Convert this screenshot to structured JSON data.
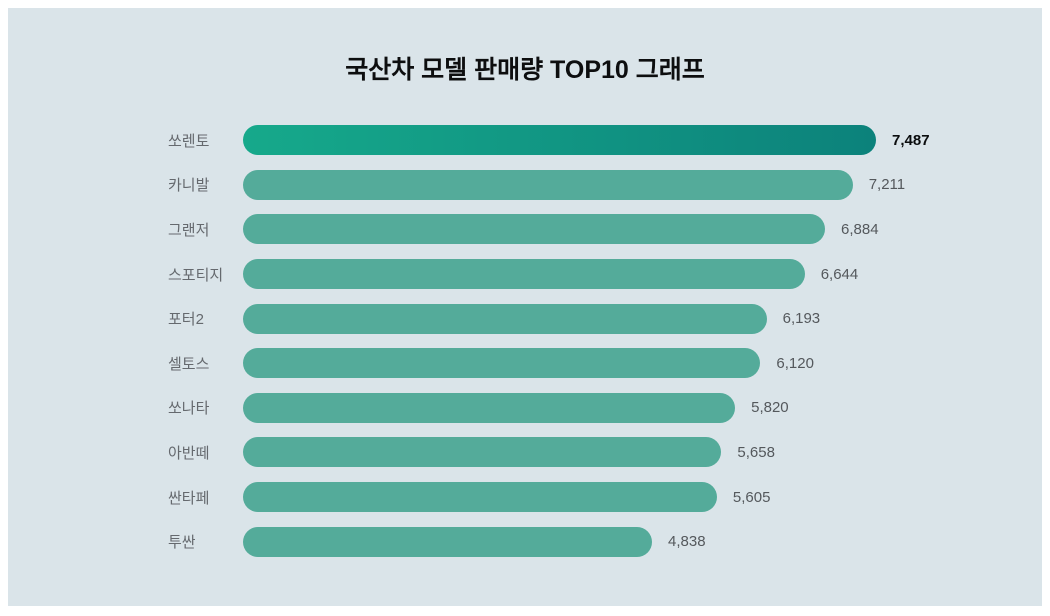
{
  "chart_data": {
    "type": "bar",
    "orientation": "horizontal",
    "title": "국산차 모델 판매량 TOP10 그래프",
    "categories": [
      "쏘렌토",
      "카니발",
      "그랜저",
      "스포티지",
      "포터2",
      "셀토스",
      "쏘나타",
      "아반떼",
      "싼타페",
      "투싼"
    ],
    "values": [
      7487,
      7211,
      6884,
      6644,
      6193,
      6120,
      5820,
      5658,
      5605,
      4838
    ],
    "value_labels": [
      "7,487",
      "7,211",
      "6,884",
      "6,644",
      "6,193",
      "6,120",
      "5,820",
      "5,658",
      "5,605",
      "4,838"
    ],
    "xlim": [
      0,
      7487
    ],
    "grid": false,
    "legend": false,
    "highlight_index": 0,
    "colors": {
      "background": "#dae4e9",
      "outer_border": "#ffffff",
      "bar": "#54ab9a",
      "highlight_gradient_start": "#16a98b",
      "highlight_gradient_end": "#0c827b",
      "category_text": "#65696e",
      "value_text": "#54585c",
      "highlight_value_text": "#0b0d0e",
      "title_text": "#0d0e0f"
    }
  }
}
